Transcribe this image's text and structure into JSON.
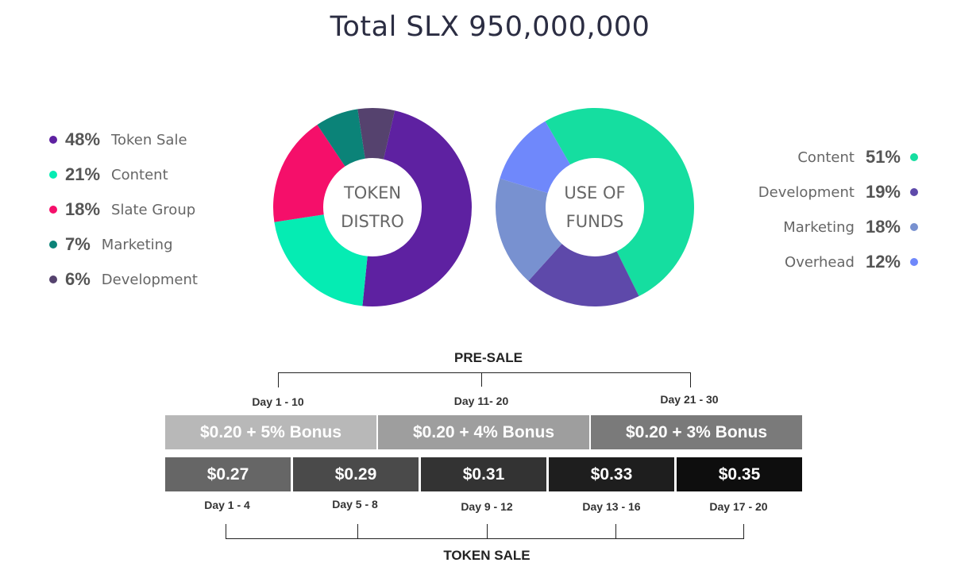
{
  "title": "Total SLX 950,000,000",
  "chart_data": [
    {
      "type": "pie",
      "title": "TOKEN DISTRO",
      "center_lines": [
        "TOKEN",
        "DISTRO"
      ],
      "slices": [
        {
          "label": "Token Sale",
          "pct_label": "48%",
          "value": 48,
          "color": "#5e21a1"
        },
        {
          "label": "Content",
          "pct_label": "21%",
          "value": 21,
          "color": "#05ecb3"
        },
        {
          "label": "Slate Group",
          "pct_label": "18%",
          "value": 18,
          "color": "#f50f6a"
        },
        {
          "label": "Marketing",
          "pct_label": "7%",
          "value": 7,
          "color": "#0b8378"
        },
        {
          "label": "Development",
          "pct_label": "6%",
          "value": 6,
          "color": "#55426e"
        }
      ]
    },
    {
      "type": "pie",
      "title": "USE OF FUNDS",
      "center_lines": [
        "USE OF",
        "FUNDS"
      ],
      "slices": [
        {
          "label": "Content",
          "pct_label": "51%",
          "value": 51,
          "color": "#15dea0"
        },
        {
          "label": "Development",
          "pct_label": "19%",
          "value": 19,
          "color": "#5e49aa"
        },
        {
          "label": "Marketing",
          "pct_label": "18%",
          "value": 18,
          "color": "#7891d0"
        },
        {
          "label": "Overhead",
          "pct_label": "12%",
          "value": 12,
          "color": "#6f88fb"
        }
      ]
    }
  ],
  "presale": {
    "label": "PRE-SALE",
    "days": [
      "Day 1 - 10",
      "Day 11- 20",
      "Day 21 - 30"
    ],
    "prices": [
      {
        "text": "$0.20 + 5% Bonus",
        "color": "#b8b8b8"
      },
      {
        "text": "$0.20 + 4% Bonus",
        "color": "#9e9e9e"
      },
      {
        "text": "$0.20 + 3% Bonus",
        "color": "#7a7a7a"
      }
    ]
  },
  "tokensale": {
    "label": "TOKEN SALE",
    "prices": [
      {
        "text": "$0.27",
        "color": "#666666"
      },
      {
        "text": "$0.29",
        "color": "#4a4a4a"
      },
      {
        "text": "$0.31",
        "color": "#333333"
      },
      {
        "text": "$0.33",
        "color": "#1e1e1e"
      },
      {
        "text": "$0.35",
        "color": "#0e0e0e"
      }
    ],
    "days": [
      "Day 1 - 4",
      "Day 5 - 8",
      "Day 9 - 12",
      "Day 13 - 16",
      "Day 17 - 20"
    ]
  }
}
